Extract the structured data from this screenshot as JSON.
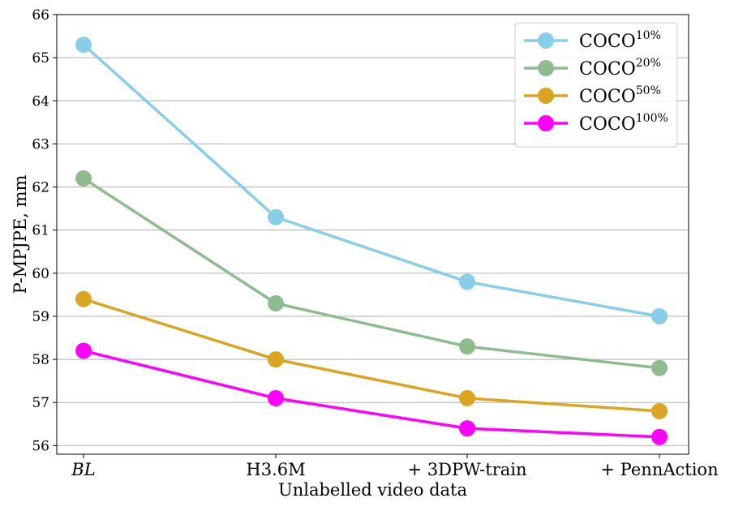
{
  "chart_data": {
    "type": "line",
    "title": "",
    "xlabel": "Unlabelled video data",
    "ylabel": "P-MPJPE, mm",
    "categories": [
      "BL",
      "H3.6M",
      "+ 3DPW-train",
      "+ PennAction"
    ],
    "ylim": [
      55.8,
      66.0
    ],
    "yticks": [
      56,
      57,
      58,
      59,
      60,
      61,
      62,
      63,
      64,
      65,
      66
    ],
    "grid": "horizontal",
    "legend_position": "top-right",
    "series": [
      {
        "name": "COCO",
        "superscript": "10%",
        "color": "#87ceeb",
        "values": [
          65.3,
          61.3,
          59.8,
          59.0
        ]
      },
      {
        "name": "COCO",
        "superscript": "20%",
        "color": "#8fbc8f",
        "values": [
          62.2,
          59.3,
          58.3,
          57.8
        ]
      },
      {
        "name": "COCO",
        "superscript": "50%",
        "color": "#daa520",
        "values": [
          59.4,
          58.0,
          57.1,
          56.8
        ]
      },
      {
        "name": "COCO",
        "superscript": "100%",
        "color": "#ff00ff",
        "values": [
          58.2,
          57.1,
          56.4,
          56.2
        ]
      }
    ]
  }
}
